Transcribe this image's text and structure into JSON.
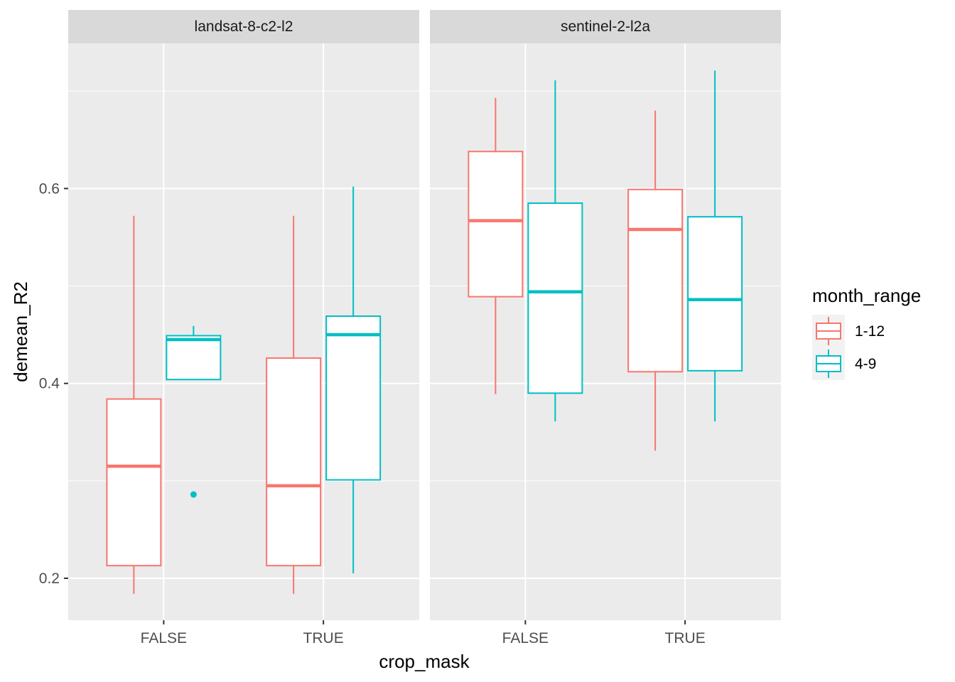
{
  "chart_data": {
    "type": "boxplot",
    "facets": [
      "landsat-8-c2-l2",
      "sentinel-2-l2a"
    ],
    "categories": [
      "FALSE",
      "TRUE"
    ],
    "xlabel": "crop_mask",
    "ylabel": "demean_R2",
    "ylim": [
      0.157,
      0.749
    ],
    "yticks": [
      0.2,
      0.4,
      0.6
    ],
    "ytick_labels": [
      "0.2",
      "0.4",
      "0.6"
    ],
    "grid": true,
    "legend": {
      "title": "month_range",
      "position": "right",
      "entries": [
        "1-12",
        "4-9"
      ]
    },
    "colors": {
      "1-12": "#F8766D",
      "4-9": "#00BFC4"
    },
    "series": [
      {
        "name": "1-12",
        "facets": {
          "landsat-8-c2-l2": {
            "FALSE": {
              "lower_whisker": 0.184,
              "q1": 0.213,
              "median": 0.315,
              "q3": 0.384,
              "upper_whisker": 0.572
            },
            "TRUE": {
              "lower_whisker": 0.184,
              "q1": 0.213,
              "median": 0.295,
              "q3": 0.426,
              "upper_whisker": 0.572
            }
          },
          "sentinel-2-l2a": {
            "FALSE": {
              "lower_whisker": 0.389,
              "q1": 0.489,
              "median": 0.567,
              "q3": 0.638,
              "upper_whisker": 0.693
            },
            "TRUE": {
              "lower_whisker": 0.331,
              "q1": 0.412,
              "median": 0.558,
              "q3": 0.599,
              "upper_whisker": 0.68
            }
          }
        }
      },
      {
        "name": "4-9",
        "facets": {
          "landsat-8-c2-l2": {
            "FALSE": {
              "lower_whisker": 0.404,
              "q1": 0.404,
              "median": 0.445,
              "q3": 0.449,
              "upper_whisker": 0.459,
              "outliers": [
                0.286
              ]
            },
            "TRUE": {
              "lower_whisker": 0.205,
              "q1": 0.301,
              "median": 0.45,
              "q3": 0.469,
              "upper_whisker": 0.602
            }
          },
          "sentinel-2-l2a": {
            "FALSE": {
              "lower_whisker": 0.361,
              "q1": 0.39,
              "median": 0.494,
              "q3": 0.585,
              "upper_whisker": 0.711
            },
            "TRUE": {
              "lower_whisker": 0.361,
              "q1": 0.413,
              "median": 0.486,
              "q3": 0.571,
              "upper_whisker": 0.721
            }
          }
        }
      }
    ]
  }
}
